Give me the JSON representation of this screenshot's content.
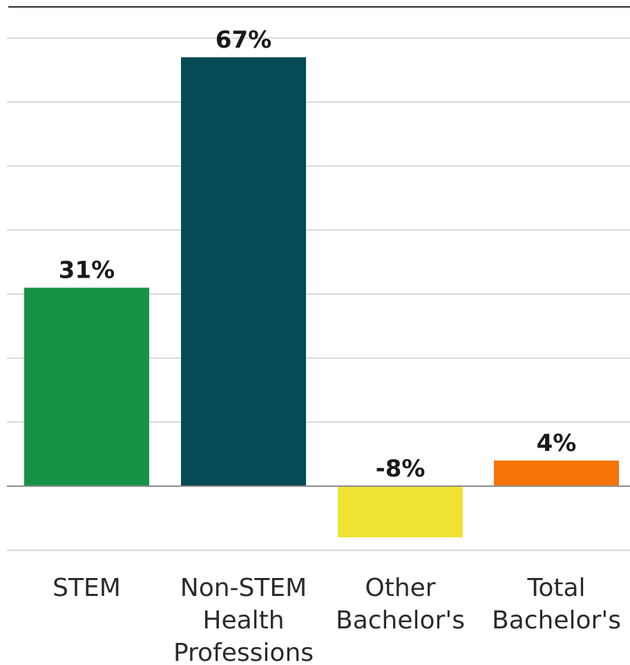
{
  "chart_data": {
    "type": "bar",
    "categories": [
      [
        "STEM"
      ],
      [
        "Non-STEM",
        "Health",
        "Professions"
      ],
      [
        "Other",
        "Bachelor's"
      ],
      [
        "Total",
        "Bachelor's"
      ]
    ],
    "values": [
      31,
      67,
      -8,
      4
    ],
    "labels": [
      "31%",
      "67%",
      "-8%",
      "4%"
    ],
    "colors": [
      "#179347",
      "#054b57",
      "#f0e232",
      "#f77408"
    ],
    "ylim": [
      -10,
      70
    ],
    "grid": true
  }
}
